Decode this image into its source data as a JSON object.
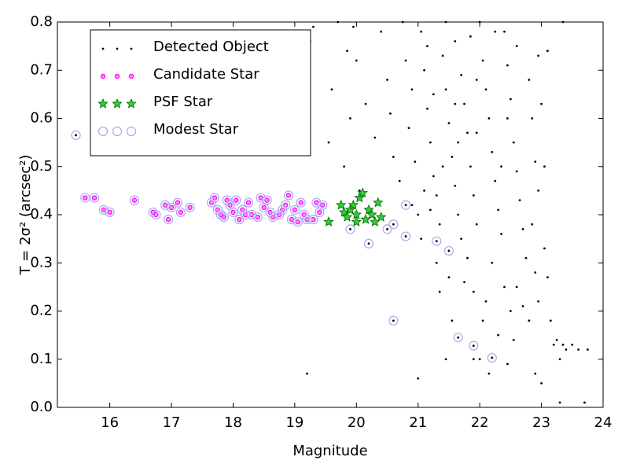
{
  "chart_data": {
    "type": "scatter",
    "xlabel": "Magnitude",
    "ylabel": "T = 2σ² (arcsec²)",
    "xlim": [
      15.15,
      24
    ],
    "ylim": [
      0,
      0.8
    ],
    "xticks": [
      16,
      17,
      18,
      19,
      20,
      21,
      22,
      23,
      24
    ],
    "yticks": [
      {
        "value": 0,
        "label": "0.0"
      },
      0.1,
      0.2,
      0.3,
      0.4,
      0.5,
      0.6,
      0.7,
      0.8
    ],
    "legend": "upper-left",
    "series": [
      {
        "name": "Detected Object",
        "color": "#000000",
        "marker": "dot",
        "x": [
          19.7,
          19.85,
          19.6,
          19.9,
          20.0,
          20.15,
          19.55,
          19.8,
          20.05,
          20.3,
          20.4,
          19.95,
          20.5,
          20.6,
          20.7,
          20.55,
          20.8,
          20.85,
          20.9,
          20.75,
          19.3,
          19.25,
          19.2,
          21.0,
          20.9,
          20.95,
          21.05,
          21.1,
          21.15,
          21.2,
          21.25,
          21.3,
          21.35,
          21.1,
          21.2,
          21.4,
          21.45,
          21.5,
          21.55,
          21.6,
          21.65,
          21.7,
          21.45,
          21.6,
          21.7,
          21.75,
          21.8,
          21.85,
          21.9,
          21.95,
          21.8,
          21.75,
          21.9,
          22.0,
          22.05,
          22.1,
          22.15,
          22.2,
          22.25,
          22.3,
          22.35,
          22.2,
          22.1,
          22.05,
          22.3,
          22.0,
          22.4,
          22.45,
          22.5,
          22.55,
          22.6,
          22.65,
          22.7,
          22.75,
          22.6,
          22.5,
          22.55,
          22.45,
          22.8,
          22.85,
          22.9,
          22.95,
          22.85,
          22.9,
          22.95,
          22.8,
          22.9,
          23.0,
          23.05,
          23.1,
          23.15,
          23.2,
          23.25,
          23.3,
          23.35,
          23.3,
          23.4,
          23.5,
          23.6,
          23.7,
          23.75,
          23.35,
          23.05,
          23.0,
          23.1,
          22.95,
          21.35,
          21.55,
          21.45,
          21.3,
          21.9,
          22.15,
          21.05,
          21.5,
          22.4,
          22.7,
          22.35,
          21.95,
          21.65,
          21.25,
          21.0,
          22.6,
          22.25,
          21.85,
          21.95,
          22.45,
          21.6,
          21.4,
          21.15,
          19.9,
          20.2,
          20.6,
          20.8,
          20.8,
          20.5,
          21.3,
          21.5,
          20.6,
          21.65,
          21.9,
          22.2,
          15.45
        ],
        "values": [
          0.8,
          0.74,
          0.66,
          0.6,
          0.72,
          0.63,
          0.55,
          0.5,
          0.45,
          0.56,
          0.78,
          0.79,
          0.68,
          0.52,
          0.47,
          0.61,
          0.72,
          0.58,
          0.42,
          0.8,
          0.79,
          0.76,
          0.07,
          0.06,
          0.66,
          0.51,
          0.78,
          0.7,
          0.62,
          0.55,
          0.48,
          0.44,
          0.38,
          0.45,
          0.41,
          0.73,
          0.66,
          0.59,
          0.52,
          0.46,
          0.4,
          0.35,
          0.8,
          0.76,
          0.69,
          0.63,
          0.57,
          0.5,
          0.44,
          0.38,
          0.31,
          0.26,
          0.24,
          0.8,
          0.72,
          0.66,
          0.6,
          0.53,
          0.47,
          0.41,
          0.36,
          0.3,
          0.22,
          0.18,
          0.15,
          0.1,
          0.78,
          0.71,
          0.64,
          0.55,
          0.49,
          0.43,
          0.37,
          0.31,
          0.25,
          0.2,
          0.14,
          0.09,
          0.68,
          0.6,
          0.51,
          0.45,
          0.38,
          0.28,
          0.22,
          0.18,
          0.07,
          0.05,
          0.33,
          0.27,
          0.18,
          0.13,
          0.14,
          0.1,
          0.13,
          0.01,
          0.12,
          0.13,
          0.12,
          0.01,
          0.12,
          0.8,
          0.5,
          0.63,
          0.74,
          0.73,
          0.24,
          0.18,
          0.1,
          0.3,
          0.1,
          0.07,
          0.35,
          0.27,
          0.25,
          0.21,
          0.5,
          0.68,
          0.55,
          0.65,
          0.4,
          0.75,
          0.78,
          0.77,
          0.57,
          0.6,
          0.63,
          0.5,
          0.75,
          0.37,
          0.34,
          0.38,
          0.355,
          0.42,
          0.37,
          0.345,
          0.325,
          0.18,
          0.145,
          0.128,
          0.103,
          0.565
        ]
      },
      {
        "name": "Candidate Star",
        "color": "#ff00ff",
        "marker": "circle",
        "x": [
          15.6,
          15.75,
          15.9,
          16.0,
          16.4,
          16.7,
          16.75,
          16.9,
          16.95,
          17.0,
          17.1,
          17.15,
          17.3,
          17.65,
          17.7,
          17.75,
          17.8,
          17.85,
          17.9,
          17.95,
          18.0,
          18.05,
          18.1,
          18.15,
          18.2,
          18.25,
          18.3,
          18.4,
          18.45,
          18.5,
          18.55,
          18.6,
          18.65,
          18.75,
          18.8,
          18.85,
          18.9,
          18.95,
          19.0,
          19.05,
          19.1,
          19.15,
          19.2,
          19.35,
          19.4,
          19.45,
          19.3
        ],
        "values": [
          0.435,
          0.435,
          0.41,
          0.405,
          0.43,
          0.405,
          0.4,
          0.42,
          0.39,
          0.415,
          0.425,
          0.405,
          0.415,
          0.425,
          0.435,
          0.41,
          0.4,
          0.395,
          0.43,
          0.42,
          0.405,
          0.43,
          0.39,
          0.41,
          0.4,
          0.425,
          0.4,
          0.395,
          0.435,
          0.415,
          0.43,
          0.405,
          0.395,
          0.4,
          0.41,
          0.42,
          0.44,
          0.39,
          0.41,
          0.385,
          0.425,
          0.4,
          0.39,
          0.425,
          0.405,
          0.42,
          0.39
        ]
      },
      {
        "name": "PSF Star",
        "color": "#00a000",
        "marker": "star",
        "x": [
          19.55,
          19.75,
          19.8,
          19.85,
          19.9,
          19.95,
          20.0,
          20.05,
          20.1,
          20.15,
          20.2,
          20.25,
          20.3,
          20.35,
          20.4,
          20.0
        ],
        "values": [
          0.385,
          0.42,
          0.405,
          0.395,
          0.41,
          0.42,
          0.4,
          0.435,
          0.445,
          0.39,
          0.41,
          0.4,
          0.385,
          0.425,
          0.395,
          0.385
        ]
      },
      {
        "name": "Modest Star",
        "color": "#aaaaee",
        "marker": "ring",
        "x": [
          15.6,
          15.75,
          15.9,
          16.0,
          16.4,
          16.7,
          16.75,
          16.9,
          16.95,
          17.0,
          17.1,
          17.15,
          17.3,
          17.65,
          17.7,
          17.75,
          17.8,
          17.85,
          17.9,
          17.95,
          18.0,
          18.05,
          18.1,
          18.15,
          18.2,
          18.25,
          18.3,
          18.4,
          18.45,
          18.5,
          18.55,
          18.6,
          18.65,
          18.75,
          18.8,
          18.85,
          18.9,
          18.95,
          19.0,
          19.05,
          19.1,
          19.15,
          19.2,
          19.35,
          19.4,
          19.45,
          19.3,
          19.9,
          20.2,
          20.6,
          20.8,
          20.8,
          20.5,
          21.3,
          21.5,
          20.6,
          21.65,
          21.9,
          22.2,
          15.45
        ],
        "values": [
          0.435,
          0.435,
          0.41,
          0.405,
          0.43,
          0.405,
          0.4,
          0.42,
          0.39,
          0.415,
          0.425,
          0.405,
          0.415,
          0.425,
          0.435,
          0.41,
          0.4,
          0.395,
          0.43,
          0.42,
          0.405,
          0.43,
          0.39,
          0.41,
          0.4,
          0.425,
          0.4,
          0.395,
          0.435,
          0.415,
          0.43,
          0.405,
          0.395,
          0.4,
          0.41,
          0.42,
          0.44,
          0.39,
          0.41,
          0.385,
          0.425,
          0.4,
          0.39,
          0.425,
          0.405,
          0.42,
          0.39,
          0.37,
          0.34,
          0.38,
          0.355,
          0.42,
          0.37,
          0.345,
          0.325,
          0.18,
          0.145,
          0.128,
          0.103,
          0.565
        ]
      }
    ]
  }
}
